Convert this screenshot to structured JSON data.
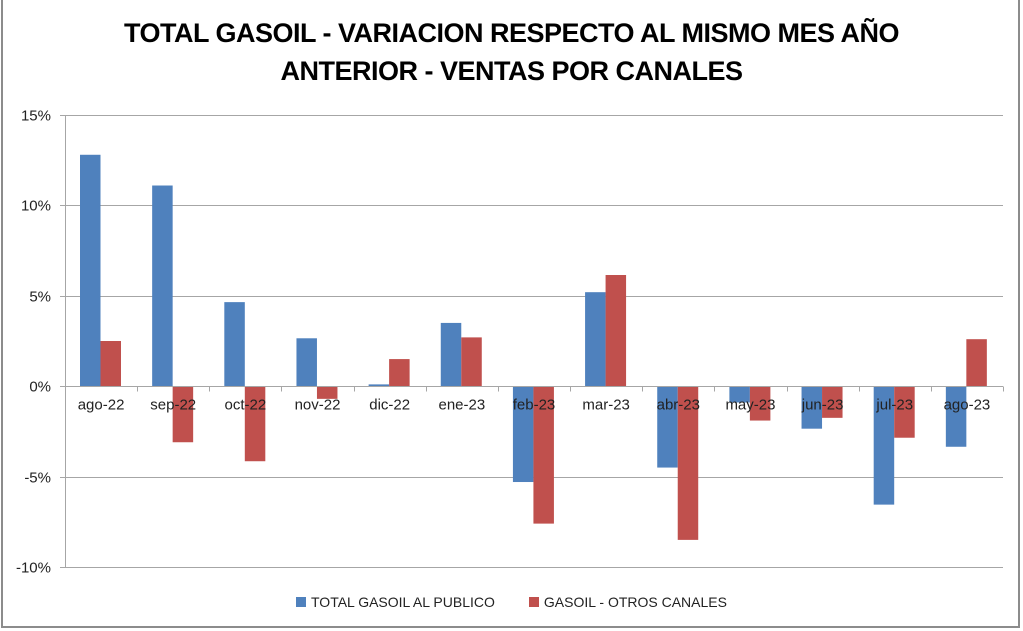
{
  "chart_data": {
    "type": "bar",
    "title_lines": [
      "TOTAL GASOIL - VARIACION RESPECTO AL MISMO MES AÑO",
      "ANTERIOR - VENTAS POR CANALES"
    ],
    "xlabel": "",
    "ylabel": "",
    "categories": [
      "ago-22",
      "sep-22",
      "oct-22",
      "nov-22",
      "dic-22",
      "ene-23",
      "feb-23",
      "mar-23",
      "abr-23",
      "may-23",
      "jun-23",
      "jul-23",
      "ago-23"
    ],
    "series": [
      {
        "name": "TOTAL GASOIL AL PUBLICO",
        "color": "#4f81bd",
        "values": [
          12.8,
          11.1,
          4.65,
          2.65,
          0.1,
          3.5,
          -5.3,
          5.2,
          -4.5,
          -0.9,
          -2.35,
          -6.55,
          -3.35
        ]
      },
      {
        "name": "GASOIL - OTROS CANALES",
        "color": "#c0504d",
        "values": [
          2.5,
          -3.1,
          -4.15,
          -0.7,
          1.5,
          2.7,
          -7.6,
          6.15,
          -8.5,
          -1.9,
          -1.75,
          -2.85,
          2.6
        ]
      }
    ],
    "ylim": [
      -10,
      15
    ],
    "yticks": [
      15,
      10,
      5,
      0,
      -5,
      -10
    ],
    "ytick_labels": [
      "15%",
      "10%",
      "5%",
      "0%",
      "-5%",
      "-10%"
    ],
    "grid": true,
    "legend_position": "bottom",
    "unit": "%"
  }
}
